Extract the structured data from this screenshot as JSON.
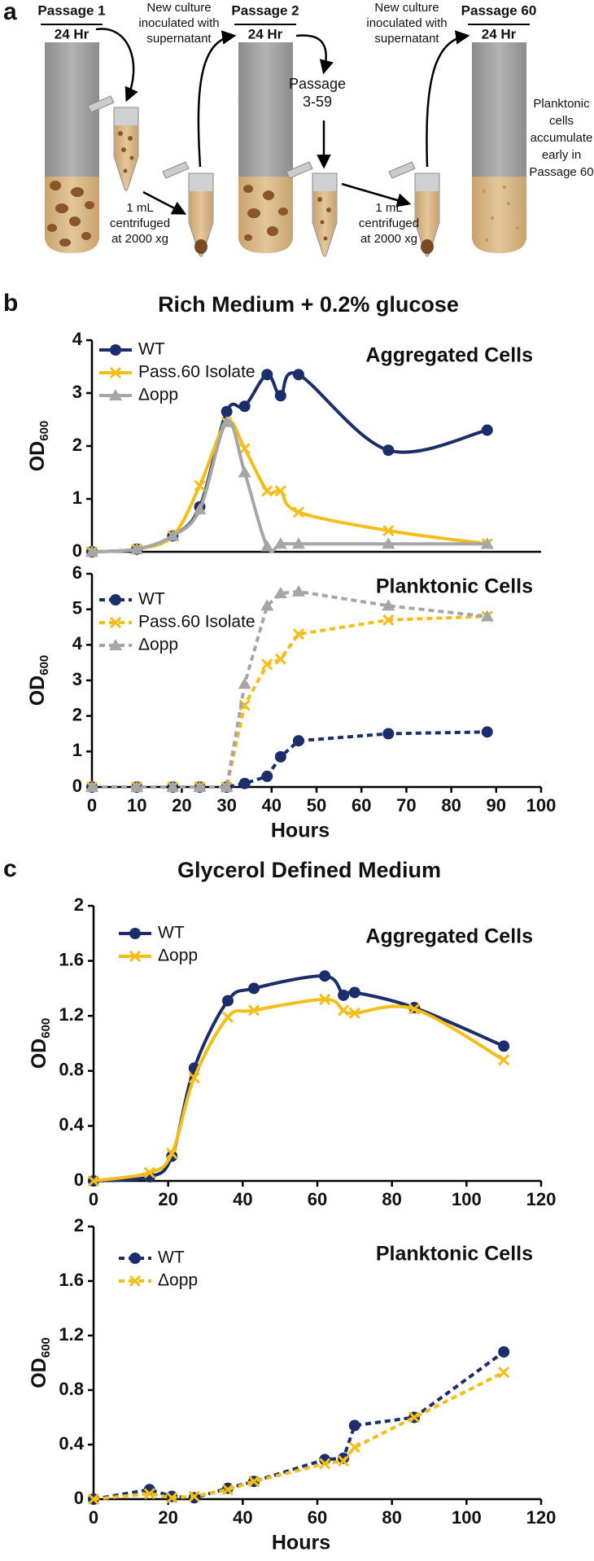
{
  "diagram": {
    "label": "a",
    "passage_1": {
      "title": "Passage 1",
      "time": "24 Hr"
    },
    "note_1": [
      "New culture",
      "inoculated with",
      "supernatant"
    ],
    "passage_2": {
      "title": "Passage 2",
      "time": "24 Hr"
    },
    "passage_mid": [
      "Passage",
      "3-59"
    ],
    "note_2": [
      "New culture",
      "inoculated with",
      "supernatant"
    ],
    "passage_60": {
      "title": "Passage 60",
      "time": "24 Hr"
    },
    "spin_1": [
      "1 mL",
      "centrifuged",
      "at 2000 xg"
    ],
    "spin_2": [
      "1 mL",
      "centrifuged",
      "at 2000 xg"
    ],
    "note_60": [
      "Planktonic",
      "cells",
      "accumulate",
      "early in",
      "Passage 60"
    ]
  },
  "chart_data": [
    {
      "type": "line",
      "panel_label": "b",
      "title": "Rich Medium + 0.2% glucose",
      "annotation": "Aggregated Cells",
      "y_label": "OD",
      "y_label_sub": "600",
      "smooth": true,
      "dashed": false,
      "legend": "top-left",
      "x": [
        0,
        10,
        18,
        24,
        30,
        34,
        39,
        42,
        46,
        66,
        88
      ],
      "series": [
        {
          "name": "WT",
          "color": "#1b2d6b",
          "marker": "circle",
          "values": [
            0,
            0.05,
            0.3,
            0.85,
            2.65,
            2.75,
            3.35,
            2.95,
            3.35,
            1.92,
            2.3
          ]
        },
        {
          "name": "Pass.60 Isolate",
          "color": "#f5bd17",
          "marker": "x",
          "values": [
            0,
            0.05,
            0.3,
            1.25,
            2.45,
            1.95,
            1.15,
            1.15,
            0.75,
            0.4,
            0.15
          ]
        },
        {
          "name": "Δopp",
          "color": "#a6a6a6",
          "marker": "triangle",
          "values": [
            0,
            0.05,
            0.3,
            0.8,
            2.45,
            1.5,
            0.1,
            0.15,
            0.15,
            0.15,
            0.15
          ]
        }
      ],
      "xlim": [
        0,
        100
      ],
      "ylim": [
        0,
        4
      ],
      "yticks": [
        0,
        1,
        2,
        3,
        4
      ]
    },
    {
      "type": "line",
      "annotation": "Planktonic Cells",
      "y_label": "OD",
      "y_label_sub": "600",
      "x_label": "Hours",
      "smooth": false,
      "dashed": true,
      "legend": "top-left",
      "x": [
        0,
        10,
        18,
        24,
        30,
        34,
        39,
        42,
        46,
        66,
        88
      ],
      "series": [
        {
          "name": "WT",
          "color": "#1b2d6b",
          "marker": "circle",
          "values": [
            0,
            0,
            0,
            0,
            0,
            0.1,
            0.3,
            0.85,
            1.3,
            1.5,
            1.55
          ]
        },
        {
          "name": "Pass.60 Isolate",
          "color": "#f5bd17",
          "marker": "x",
          "values": [
            0,
            0,
            0,
            0,
            0,
            2.3,
            3.45,
            3.6,
            4.3,
            4.7,
            4.8
          ]
        },
        {
          "name": "Δopp",
          "color": "#a6a6a6",
          "marker": "triangle",
          "values": [
            0,
            0,
            0,
            0,
            0,
            2.9,
            5.1,
            5.45,
            5.5,
            5.1,
            4.8
          ]
        }
      ],
      "xlim": [
        0,
        100
      ],
      "xticks": [
        0,
        10,
        20,
        30,
        40,
        50,
        60,
        70,
        80,
        90,
        100
      ],
      "ylim": [
        0,
        6
      ],
      "yticks": [
        0,
        1,
        2,
        3,
        4,
        5,
        6
      ]
    },
    {
      "type": "line",
      "panel_label": "c",
      "title": "Glycerol Defined Medium",
      "annotation": "Aggregated Cells",
      "y_label": "OD",
      "y_label_sub": "600",
      "smooth": true,
      "dashed": false,
      "legend": "top-left",
      "x": [
        0,
        15,
        21,
        27,
        36,
        43,
        62,
        67,
        70,
        86,
        110
      ],
      "series": [
        {
          "name": "WT",
          "color": "#1b2d6b",
          "marker": "circle",
          "values": [
            0,
            0.03,
            0.18,
            0.82,
            1.31,
            1.4,
            1.49,
            1.35,
            1.37,
            1.26,
            0.98
          ]
        },
        {
          "name": "Δopp",
          "color": "#f5bd17",
          "marker": "x",
          "values": [
            0,
            0.06,
            0.2,
            0.75,
            1.19,
            1.24,
            1.32,
            1.24,
            1.22,
            1.25,
            0.88
          ]
        }
      ],
      "xlim": [
        0,
        120
      ],
      "xticks": [
        0,
        20,
        40,
        60,
        80,
        100,
        120
      ],
      "ylim": [
        0,
        2
      ],
      "yticks": [
        0,
        0.4,
        0.8,
        1.2,
        1.6,
        2
      ]
    },
    {
      "type": "line",
      "annotation": "Planktonic Cells",
      "y_label": "OD",
      "y_label_sub": "600",
      "x_label": "Hours",
      "smooth": false,
      "dashed": true,
      "legend": "top-left",
      "x": [
        0,
        15,
        21,
        27,
        36,
        43,
        62,
        67,
        70,
        86,
        110
      ],
      "series": [
        {
          "name": "WT",
          "color": "#1b2d6b",
          "marker": "circle",
          "values": [
            0,
            0.07,
            0.02,
            0.01,
            0.08,
            0.13,
            0.29,
            0.3,
            0.54,
            0.6,
            1.08
          ]
        },
        {
          "name": "Δopp",
          "color": "#f5bd17",
          "marker": "x",
          "values": [
            0,
            0.04,
            0.01,
            0.02,
            0.07,
            0.13,
            0.26,
            0.28,
            0.38,
            0.6,
            0.93
          ]
        }
      ],
      "xlim": [
        0,
        120
      ],
      "xticks": [
        0,
        20,
        40,
        60,
        80,
        100,
        120
      ],
      "ylim": [
        0,
        2
      ],
      "yticks": [
        0,
        0.4,
        0.8,
        1.2,
        1.6,
        2
      ]
    }
  ]
}
